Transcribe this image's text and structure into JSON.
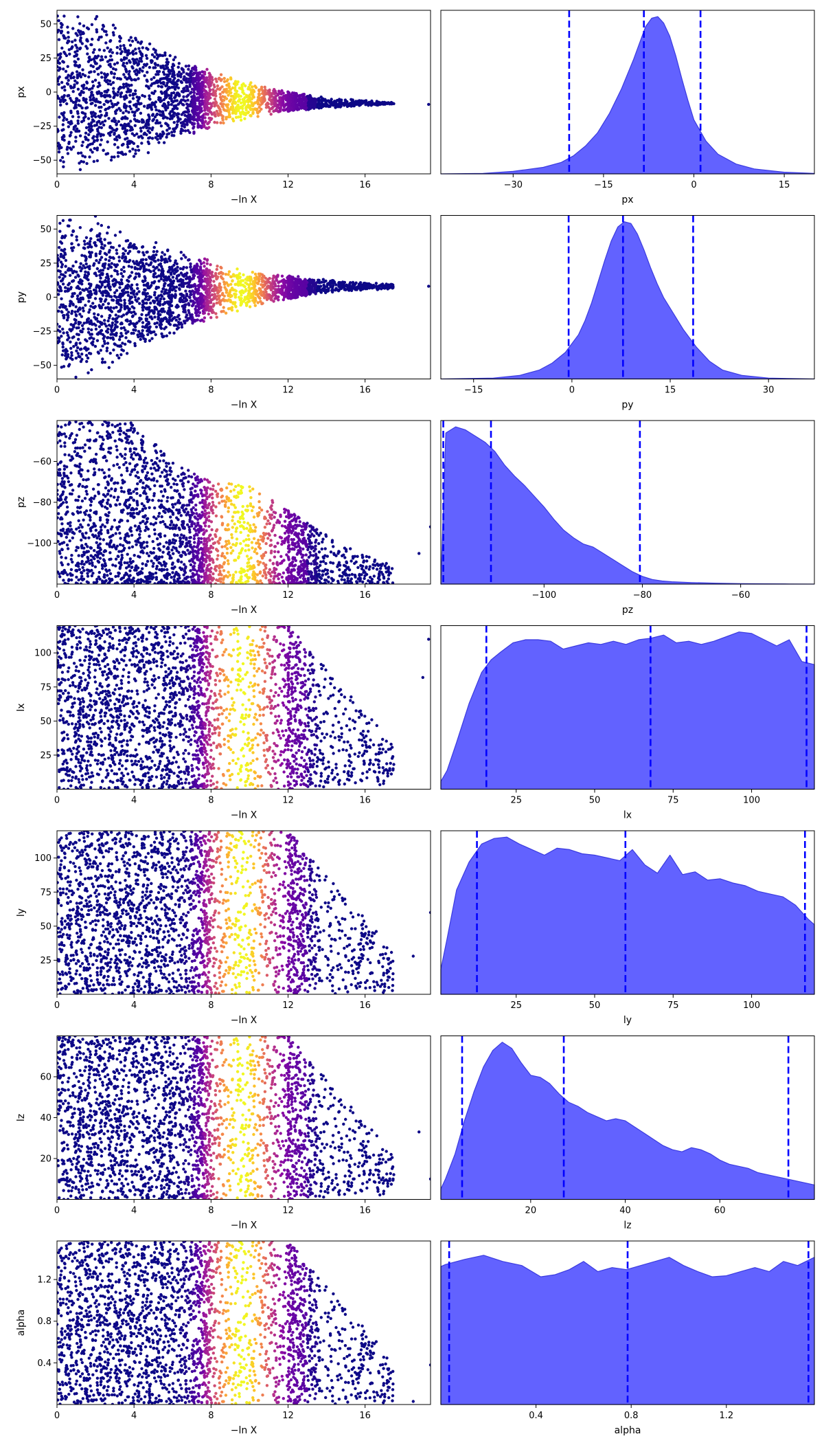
{
  "chart_data": {
    "type": "trace-plot",
    "left_xlabel": "−ln X",
    "left_xlim": [
      0,
      19.4
    ],
    "left_xticks": [
      0,
      4,
      8,
      12,
      16
    ],
    "left_xtick_labels": [
      "0",
      "4",
      "8",
      "12",
      "16"
    ],
    "colormap": "plasma",
    "colormap_stops": [
      "#0d0887",
      "#5302a3",
      "#8b0aa5",
      "#b83289",
      "#db5c68",
      "#f48849",
      "#febd2a",
      "#f0f921"
    ],
    "dashed_line_color": "#0000ff",
    "kde_fill_color": "#6262ff",
    "kde_edge_color": "#3a3adf",
    "panels": [
      {
        "name": "px",
        "ylabel": "px",
        "xlabel": "px",
        "trace": {
          "ylim": [
            -60,
            60
          ],
          "yticks": [
            -50,
            -25,
            0,
            25,
            50
          ],
          "ytick_labels": [
            "−50",
            "−25",
            "0",
            "25",
            "50"
          ],
          "envelope": [
            [
              0,
              60
            ],
            [
              2,
              60
            ],
            [
              4,
              48
            ],
            [
              6,
              33
            ],
            [
              8,
              22
            ],
            [
              10,
              14
            ],
            [
              12,
              8
            ],
            [
              14,
              4
            ],
            [
              16,
              2
            ],
            [
              17.5,
              1
            ]
          ],
          "center": [
            [
              0,
              0
            ],
            [
              4,
              -2
            ],
            [
              8,
              -5
            ],
            [
              10,
              -6
            ],
            [
              12,
              -7
            ],
            [
              14,
              -8
            ],
            [
              16,
              -8
            ],
            [
              17.5,
              -8.5
            ]
          ],
          "outliers": [
            [
              19.3,
              -9
            ]
          ]
        },
        "kde": {
          "xlim": [
            -42,
            20
          ],
          "xticks": [
            -30,
            -15,
            0,
            15
          ],
          "xtick_labels": [
            "−30",
            "−15",
            "0",
            "15"
          ],
          "x": [
            -42,
            -35,
            -30,
            -25,
            -22,
            -20,
            -18,
            -16,
            -14,
            -12,
            -10,
            -9,
            -8,
            -7,
            -6,
            -5,
            -4,
            -3,
            -2,
            -1,
            0,
            2,
            4,
            7,
            10,
            15,
            20
          ],
          "y": [
            0,
            0.3,
            1.5,
            4,
            7,
            11,
            17,
            25,
            37,
            52,
            70,
            80,
            90,
            95,
            96,
            92,
            84,
            72,
            58,
            45,
            33,
            20,
            12,
            6,
            3,
            1,
            0.3
          ],
          "quantiles": [
            -20.7,
            -8.3,
            1.1
          ]
        }
      },
      {
        "name": "py",
        "ylabel": "py",
        "xlabel": "py",
        "trace": {
          "ylim": [
            -60,
            60
          ],
          "yticks": [
            -50,
            -25,
            0,
            25,
            50
          ],
          "ytick_labels": [
            "−50",
            "−25",
            "0",
            "25",
            "50"
          ],
          "envelope": [
            [
              0,
              60
            ],
            [
              2,
              60
            ],
            [
              4,
              46
            ],
            [
              6,
              32
            ],
            [
              8,
              22
            ],
            [
              10,
              14
            ],
            [
              12,
              9
            ],
            [
              14,
              5
            ],
            [
              16,
              3
            ],
            [
              17.5,
              2
            ]
          ],
          "center": [
            [
              0,
              0
            ],
            [
              4,
              2
            ],
            [
              8,
              5
            ],
            [
              10,
              6
            ],
            [
              12,
              7
            ],
            [
              14,
              8
            ],
            [
              16,
              8
            ],
            [
              17.5,
              8
            ]
          ],
          "outliers": [
            [
              19.3,
              8
            ]
          ]
        },
        "kde": {
          "xlim": [
            -20,
            37
          ],
          "xticks": [
            -15,
            0,
            15,
            30
          ],
          "xtick_labels": [
            "−15",
            "0",
            "15",
            "30"
          ],
          "x": [
            -20,
            -12,
            -8,
            -5,
            -3,
            -1,
            1,
            2,
            3,
            4,
            5,
            6,
            7,
            8,
            9,
            10,
            11,
            12,
            13,
            14,
            15,
            17,
            19,
            21,
            23,
            26,
            30,
            37
          ],
          "y": [
            0,
            0.5,
            2,
            5,
            9,
            15,
            25,
            33,
            43,
            55,
            67,
            78,
            86,
            89,
            88,
            82,
            73,
            63,
            54,
            46,
            40,
            28,
            18,
            10,
            5,
            2,
            0.5,
            0
          ],
          "quantiles": [
            -0.5,
            7.8,
            18.5
          ]
        }
      },
      {
        "name": "pz",
        "ylabel": "pz",
        "xlabel": "pz",
        "trace": {
          "ylim": [
            -120,
            -40
          ],
          "yticks": [
            -100,
            -80,
            -60
          ],
          "ytick_labels": [
            "−100",
            "−80",
            "−60"
          ],
          "envelope": [
            [
              0,
              80
            ],
            [
              4,
              80
            ],
            [
              6,
              60
            ],
            [
              8,
              50
            ],
            [
              10,
              48
            ],
            [
              12,
              36
            ],
            [
              14,
              24
            ],
            [
              16,
              14
            ],
            [
              18,
              8
            ]
          ],
          "center": [
            [
              0,
              -120
            ],
            [
              18,
              -120
            ]
          ],
          "outliers": [
            [
              19.4,
              -92
            ],
            [
              18.8,
              -105
            ]
          ]
        },
        "kde": {
          "xlim": [
            -121,
            -45
          ],
          "xticks": [
            -100,
            -80,
            -60
          ],
          "xtick_labels": [
            "−100",
            "−80",
            "−60"
          ],
          "x": [
            -121,
            -120,
            -118,
            -116,
            -114,
            -112,
            -110,
            -108,
            -106,
            -104,
            -102,
            -100,
            -98,
            -96,
            -94,
            -92,
            -90,
            -88,
            -86,
            -84,
            -82,
            -80,
            -78,
            -76,
            -74,
            -70,
            -65,
            -60,
            -55,
            -50,
            -45
          ],
          "y": [
            0,
            98,
            102,
            100,
            96,
            92,
            86,
            77,
            70,
            64,
            57,
            50,
            42,
            35,
            30,
            26,
            24,
            20,
            16,
            12,
            8,
            5,
            3,
            2,
            1.5,
            1,
            0.6,
            0.3,
            0.2,
            0.1,
            0
          ],
          "quantiles": [
            -120.5,
            -110.8,
            -80.5
          ]
        }
      },
      {
        "name": "lx",
        "ylabel": "lx",
        "xlabel": "lx",
        "trace": {
          "ylim": [
            0,
            120
          ],
          "yticks": [
            25,
            50,
            75,
            100
          ],
          "ytick_labels": [
            "25",
            "50",
            "75",
            "100"
          ],
          "envelope": "uniform",
          "tail": 17.5,
          "outliers": [
            [
              19.3,
              110
            ],
            [
              19.0,
              82
            ]
          ]
        },
        "kde": {
          "xlim": [
            1,
            120
          ],
          "xticks": [
            25,
            50,
            75,
            100
          ],
          "xtick_labels": [
            "25",
            "50",
            "75",
            "100"
          ],
          "x": [
            1,
            3,
            6,
            10,
            14,
            17,
            20,
            24,
            28,
            32,
            36,
            40,
            44,
            48,
            52,
            56,
            60,
            64,
            68,
            72,
            76,
            80,
            84,
            88,
            92,
            96,
            100,
            104,
            108,
            112,
            116,
            120
          ],
          "y": [
            5,
            12,
            30,
            55,
            75,
            83,
            88,
            94,
            96,
            96,
            95,
            90,
            92,
            94,
            93,
            95,
            93,
            96,
            97,
            99,
            94,
            95,
            93,
            95,
            98,
            101,
            100,
            96,
            92,
            96,
            82,
            80
          ],
          "quantiles": [
            15.5,
            67.8,
            117.5
          ]
        }
      },
      {
        "name": "ly",
        "ylabel": "ly",
        "xlabel": "ly",
        "trace": {
          "ylim": [
            0,
            120
          ],
          "yticks": [
            25,
            50,
            75,
            100
          ],
          "ytick_labels": [
            "25",
            "50",
            "75",
            "100"
          ],
          "envelope": "uniform",
          "tail": 17.5,
          "outliers": [
            [
              19.4,
              60
            ],
            [
              18.5,
              28
            ]
          ]
        },
        "kde": {
          "xlim": [
            1,
            120
          ],
          "xticks": [
            25,
            50,
            75,
            100
          ],
          "xtick_labels": [
            "25",
            "50",
            "75",
            "100"
          ],
          "x": [
            1,
            3,
            6,
            10,
            14,
            18,
            22,
            26,
            30,
            34,
            38,
            42,
            46,
            50,
            54,
            58,
            62,
            66,
            70,
            74,
            78,
            82,
            86,
            90,
            94,
            98,
            102,
            106,
            110,
            114,
            118,
            120
          ],
          "y": [
            18,
            40,
            75,
            95,
            108,
            112,
            113,
            108,
            104,
            100,
            105,
            104,
            101,
            100,
            98,
            96,
            104,
            93,
            87,
            100,
            86,
            88,
            82,
            83,
            80,
            78,
            74,
            72,
            70,
            64,
            54,
            50
          ],
          "quantiles": [
            12.5,
            59.8,
            117.0
          ]
        }
      },
      {
        "name": "lz",
        "ylabel": "lz",
        "xlabel": "lz",
        "trace": {
          "ylim": [
            0,
            80
          ],
          "yticks": [
            20,
            40,
            60
          ],
          "ytick_labels": [
            "20",
            "40",
            "60"
          ],
          "envelope": "uniform",
          "tail": 17.5,
          "outliers": [
            [
              19.4,
              10
            ],
            [
              18.8,
              33
            ]
          ]
        },
        "kde": {
          "xlim": [
            1,
            80
          ],
          "xticks": [
            20,
            40,
            60
          ],
          "xtick_labels": [
            "20",
            "40",
            "60"
          ],
          "x": [
            1,
            2,
            4,
            6,
            8,
            10,
            12,
            14,
            16,
            18,
            20,
            22,
            24,
            26,
            28,
            30,
            32,
            34,
            36,
            38,
            40,
            42,
            44,
            46,
            48,
            50,
            52,
            54,
            56,
            58,
            60,
            62,
            64,
            66,
            68,
            70,
            72,
            74,
            76,
            78,
            80
          ],
          "y": [
            5,
            10,
            22,
            38,
            52,
            64,
            72,
            76,
            73,
            66,
            60,
            59,
            56,
            51,
            47,
            45,
            42,
            40,
            38,
            39,
            38,
            35,
            32,
            29,
            26,
            24,
            23,
            25,
            24,
            22,
            19,
            17,
            16,
            15,
            13,
            12,
            11,
            10,
            9,
            8,
            7
          ],
          "quantiles": [
            5.5,
            27.0,
            74.5
          ]
        }
      },
      {
        "name": "alpha",
        "ylabel": "alpha",
        "xlabel": "alpha",
        "trace": {
          "ylim": [
            0,
            1.57
          ],
          "yticks": [
            0.4,
            0.8,
            1.2
          ],
          "ytick_labels": [
            "0.4",
            "0.8",
            "1.2"
          ],
          "envelope": "uniform",
          "tail": 17.5,
          "outliers": [
            [
              19.4,
              0.38
            ],
            [
              18.5,
              0.03
            ]
          ]
        },
        "kde": {
          "xlim": [
            0,
            1.57
          ],
          "xticks": [
            0.4,
            0.8,
            1.2
          ],
          "xtick_labels": [
            "0.4",
            "0.8",
            "1.2"
          ],
          "x": [
            0,
            0.02,
            0.1,
            0.18,
            0.26,
            0.34,
            0.42,
            0.48,
            0.54,
            0.6,
            0.66,
            0.72,
            0.78,
            0.84,
            0.9,
            0.96,
            1.02,
            1.08,
            1.14,
            1.2,
            1.26,
            1.32,
            1.38,
            1.44,
            1.5,
            1.57
          ],
          "y": [
            1.35,
            1.37,
            1.42,
            1.46,
            1.4,
            1.36,
            1.25,
            1.27,
            1.32,
            1.4,
            1.3,
            1.34,
            1.32,
            1.36,
            1.4,
            1.44,
            1.36,
            1.3,
            1.25,
            1.26,
            1.3,
            1.34,
            1.3,
            1.4,
            1.36,
            1.44
          ],
          "ymax_scale": 1.6,
          "quantiles": [
            0.035,
            0.785,
            1.545
          ]
        }
      }
    ]
  }
}
